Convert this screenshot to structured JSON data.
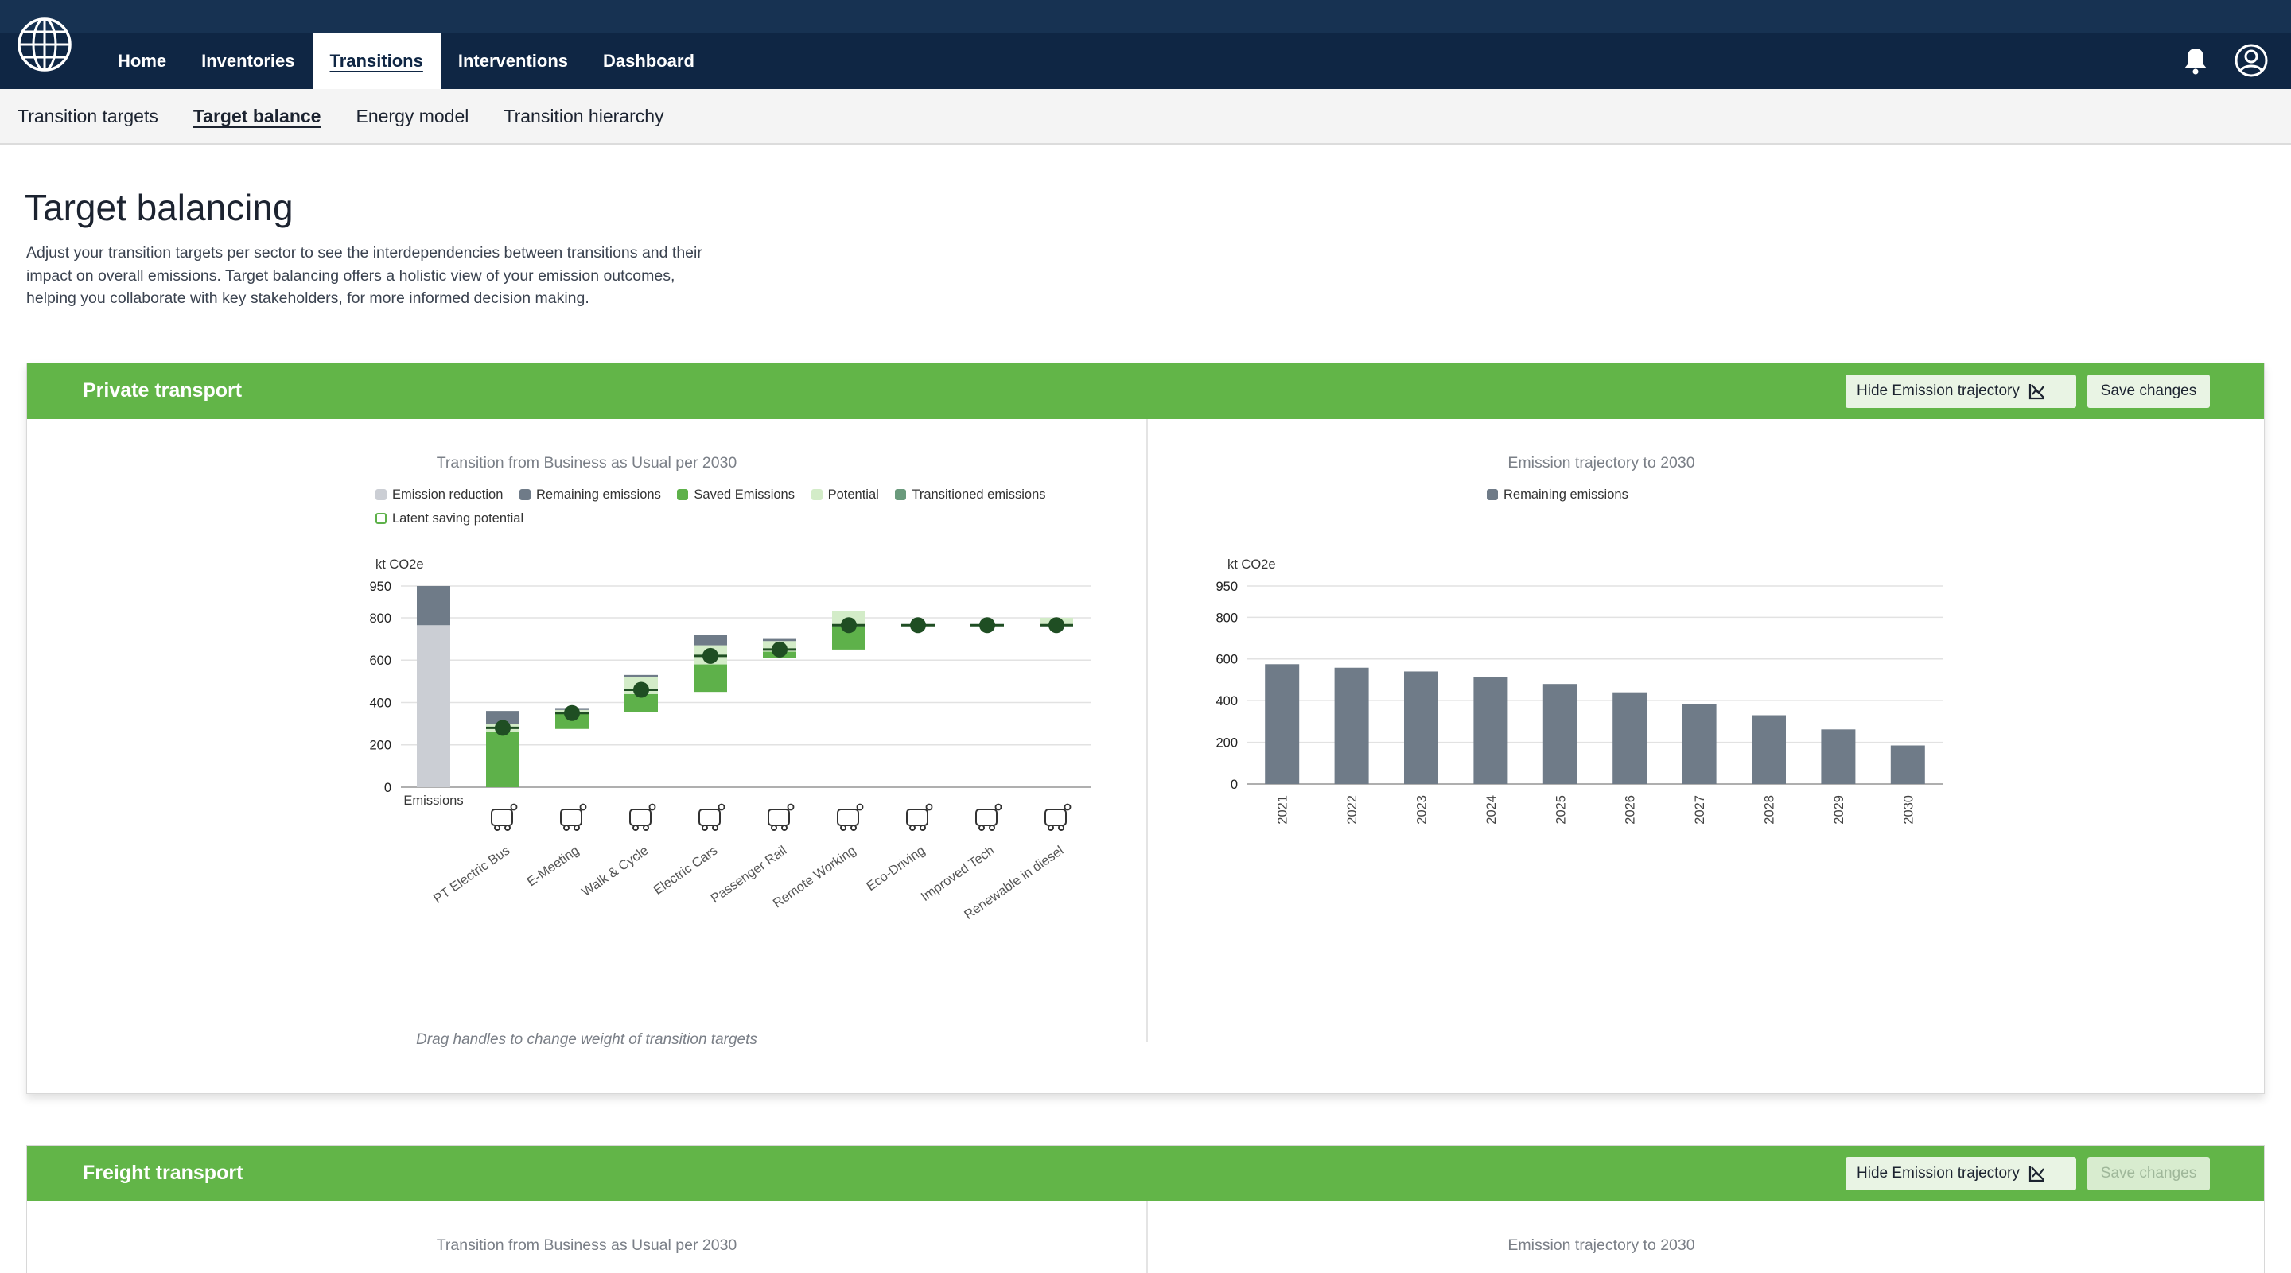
{
  "nav": {
    "items": [
      {
        "label": "Home",
        "active": false
      },
      {
        "label": "Inventories",
        "active": false
      },
      {
        "label": "Transitions",
        "active": true
      },
      {
        "label": "Interventions",
        "active": false
      },
      {
        "label": "Dashboard",
        "active": false
      }
    ]
  },
  "subnav": {
    "items": [
      {
        "label": "Transition targets",
        "active": false
      },
      {
        "label": "Target balance",
        "active": true
      },
      {
        "label": "Energy model",
        "active": false
      },
      {
        "label": "Transition hierarchy",
        "active": false
      }
    ]
  },
  "page": {
    "title": "Target balancing",
    "intro_lines": [
      "Adjust your transition targets per sector to see the interdependencies between transitions and their",
      "impact on overall emissions. Target balancing offers a holistic view of your emission outcomes,",
      "helping you collaborate with key stakeholders, for more informed decision making."
    ]
  },
  "colors": {
    "header": "#0f2644",
    "green": "#62b548",
    "emission_reduction": "#cbced4",
    "remaining": "#6f7b88",
    "saved": "#5eb14a",
    "potential": "#d3ecc8",
    "transitioned": "#6a9a7c",
    "handle": "#1f4e23"
  },
  "sections": [
    {
      "title": "Private transport",
      "hide_button": "Hide Emission trajectory",
      "save_button": "Save changes",
      "save_enabled": true,
      "left_chart_title": "Transition from Business as Usual per 2030",
      "right_chart_title": "Emission trajectory to 2030",
      "hint": "Drag handles to change weight of transition targets"
    },
    {
      "title": "Freight transport",
      "hide_button": "Hide Emission trajectory",
      "save_button": "Save changes",
      "save_enabled": false,
      "left_chart_title": "Transition from Business as Usual per 2030",
      "right_chart_title": "Emission trajectory to 2030"
    }
  ],
  "chart_data": [
    {
      "type": "bar",
      "title": "Transition from Business as Usual per 2030",
      "ylabel": "kt CO2e",
      "ylim": [
        0,
        950
      ],
      "yticks": [
        0,
        200,
        400,
        600,
        800,
        950
      ],
      "legend": [
        "Emission reduction",
        "Remaining emissions",
        "Saved Emissions",
        "Potential",
        "Transitioned emissions",
        "Latent saving potential"
      ],
      "legend_position": "top",
      "baseline": {
        "label": "Emissions",
        "total": 950,
        "emission_reduction": 765,
        "remaining": 185
      },
      "categories": [
        "PT Electric Bus",
        "E-Meeting",
        "Walk & Cycle",
        "Electric Cars",
        "Passenger Rail",
        "Remote Working",
        "Eco-Driving",
        "Improved Tech",
        "Renewable in diesel"
      ],
      "icons": [
        "bus-icon",
        "video-meeting-icon",
        "bicycle-icon",
        "ev-charging-icon",
        "train-icon",
        "remote-work-icon",
        "eco-car-icon",
        "improved-car-icon",
        "biofuel-icon"
      ],
      "series": [
        {
          "name": "Saved Emissions",
          "ranges": [
            [
              0,
              260
            ],
            [
              275,
              350
            ],
            [
              355,
              440
            ],
            [
              450,
              580
            ],
            [
              610,
              640
            ],
            [
              650,
              760
            ],
            [
              765,
              765
            ],
            [
              765,
              765
            ],
            [
              765,
              765
            ]
          ]
        },
        {
          "name": "Potential",
          "ranges": [
            [
              260,
              300
            ],
            [
              350,
              365
            ],
            [
              440,
              520
            ],
            [
              580,
              670
            ],
            [
              640,
              690
            ],
            [
              760,
              830
            ],
            [
              765,
              765
            ],
            [
              765,
              765
            ],
            [
              765,
              800
            ]
          ]
        },
        {
          "name": "Remaining emissions",
          "ranges": [
            [
              300,
              360
            ],
            [
              365,
              370
            ],
            [
              520,
              530
            ],
            [
              670,
              720
            ],
            [
              690,
              700
            ],
            [
              830,
              830
            ],
            [
              765,
              765
            ],
            [
              765,
              765
            ],
            [
              765,
              765
            ]
          ]
        }
      ],
      "handles": [
        280,
        350,
        460,
        620,
        650,
        765,
        765,
        765,
        765
      ]
    },
    {
      "type": "bar",
      "title": "Emission trajectory to 2030",
      "ylabel": "kt CO2e",
      "ylim": [
        0,
        950
      ],
      "yticks": [
        0,
        200,
        400,
        600,
        800,
        950
      ],
      "legend_position": "top",
      "categories": [
        "2021",
        "2022",
        "2023",
        "2024",
        "2025",
        "2026",
        "2027",
        "2028",
        "2029",
        "2030"
      ],
      "series": [
        {
          "name": "Remaining emissions",
          "values": [
            575,
            558,
            540,
            515,
            480,
            440,
            385,
            330,
            262,
            185
          ]
        }
      ]
    }
  ]
}
